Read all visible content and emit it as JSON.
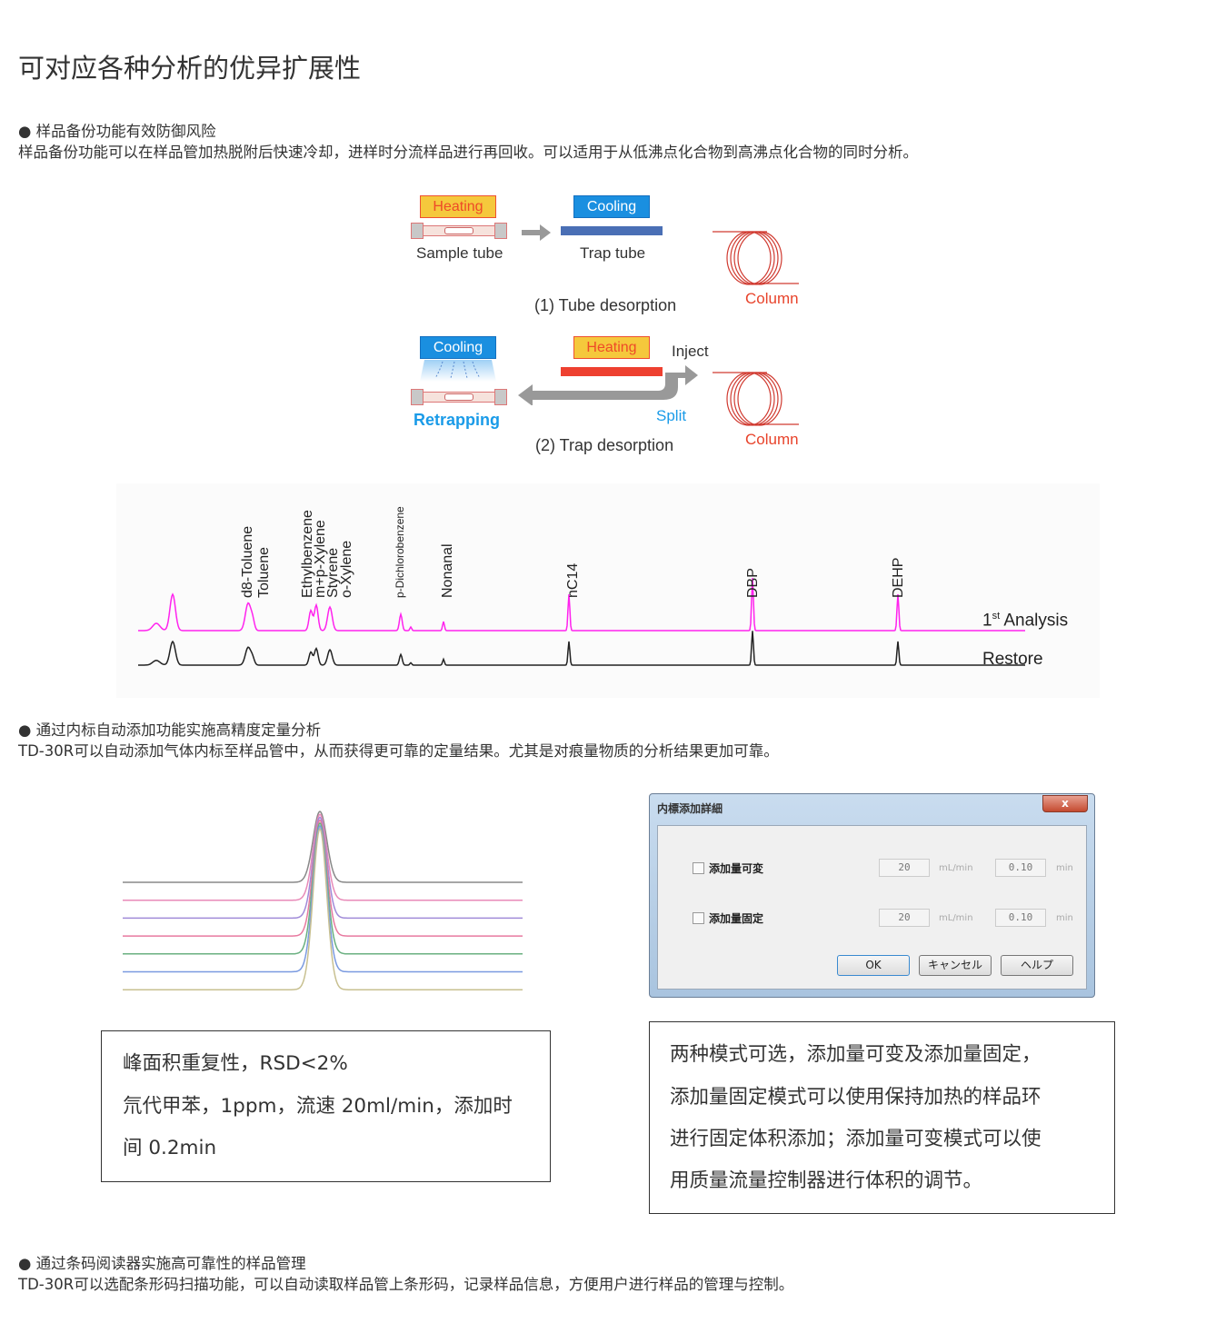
{
  "page_title": "可对应各种分析的优异扩展性",
  "sections": [
    {
      "heading": "● 样品备份功能有效防御风险",
      "body": "样品备份功能可以在样品管加热脱附后快速冷却，进样时分流样品进行再回收。可以适用于从低沸点化合物到高沸点化合物的同时分析。"
    },
    {
      "heading": "● 通过内标自动添加功能实施高精度定量分析",
      "body": "TD-30R可以自动添加气体内标至样品管中，从而获得更可靠的定量结果。尤其是对痕量物质的分析结果更加可靠。"
    },
    {
      "heading": "● 通过条码阅读器实施高可靠性的样品管理",
      "body": "TD-30R可以选配条形码扫描功能，可以自动读取样品管上条形码，记录样品信息，方便用户进行样品的管理与控制。"
    }
  ],
  "diagram": {
    "heating": "Heating",
    "cooling": "Cooling",
    "sample_tube": "Sample tube",
    "trap_tube": "Trap tube",
    "column": "Column",
    "step1": "(1) Tube desorption",
    "step2": "(2) Trap desorption",
    "inject": "Inject",
    "split": "Split",
    "retrapping": "Retrapping",
    "colors": {
      "heating_fill": "#f5c83c",
      "heating_text": "#ee4a28",
      "cooling": "#1a8fe0",
      "column": "#d03a30",
      "trap_cool": "#4a6fb5",
      "trap_heat": "#ee4030"
    }
  },
  "chromatogram": {
    "peaks": [
      "d8-Toluene",
      "Toluene",
      "Ethylbenzene",
      "m+p-Xylene",
      "Styrene",
      "o-Xylene",
      "p-Dichlorobenzene",
      "Nonanal",
      "nC14",
      "DBP",
      "DEHP"
    ],
    "trace1": {
      "label_main": "1",
      "label_sup": "st",
      "label_rest": " Analysis",
      "color": "#ff22ee"
    },
    "trace2": {
      "label": "Restore",
      "color": "#222222"
    }
  },
  "overlay_colors": [
    "#888888",
    "#e88ab8",
    "#a08ad8",
    "#e87aa0",
    "#6ab080",
    "#7a9ae0",
    "#c8c090"
  ],
  "left_box": [
    "峰面积重复性，RSD<2%",
    "氘代甲苯，1ppm，流速 20ml/min，添加时",
    "间 0.2min"
  ],
  "right_box": [
    "两种模式可选，添加量可变及添加量固定，",
    "添加量固定模式可以使用保持加热的样品环",
    "进行固定体积添加；添加量可变模式可以使",
    "用质量流量控制器进行体积的调节。"
  ],
  "dialog": {
    "title": "内標添加詳細",
    "close": "x",
    "rows": [
      {
        "label": "添加量可変",
        "flow": "20",
        "flow_unit": "mL/min",
        "time": "0.10",
        "time_unit": "min",
        "checked": false
      },
      {
        "label": "添加量固定",
        "flow": "20",
        "flow_unit": "mL/min",
        "time": "0.10",
        "time_unit": "min",
        "checked": false
      }
    ],
    "ok": "OK",
    "cancel": "キャンセル",
    "help": "ヘルプ"
  }
}
